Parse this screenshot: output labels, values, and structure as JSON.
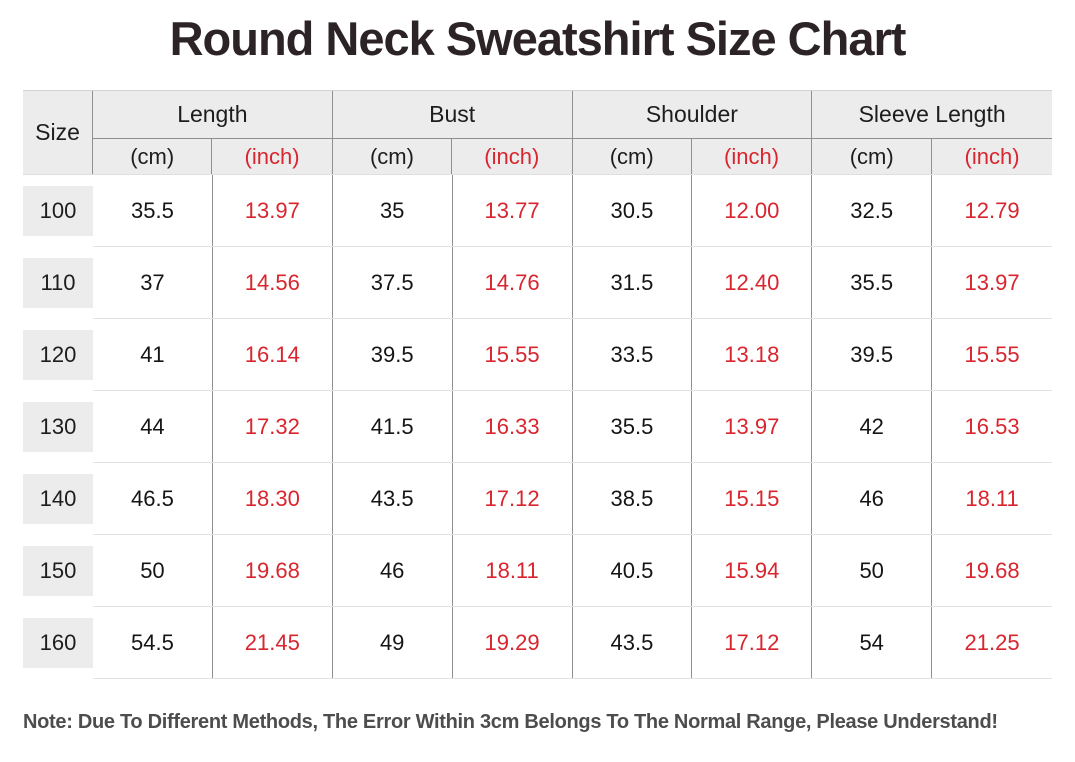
{
  "title": "Round Neck Sweatshirt Size Chart",
  "note": "Note: Due To Different Methods, The Error Within 3cm Belongs To The Normal Range, Please Understand!",
  "colors": {
    "accent_red": "#d9252e",
    "header_bg": "#ececec",
    "grid_line": "#8f8f8f",
    "row_separator": "#e3e3e3",
    "text_dark": "#1d1d1d",
    "note_gray": "#4d4d4d"
  },
  "table": {
    "size_header": "Size",
    "unit_cm": "(cm)",
    "unit_inch": "(inch)",
    "groups": [
      {
        "label": "Length"
      },
      {
        "label": "Bust"
      },
      {
        "label": "Shoulder"
      },
      {
        "label": "Sleeve Length"
      }
    ],
    "rows": [
      {
        "size": "100",
        "length_cm": "35.5",
        "length_inch": "13.97",
        "bust_cm": "35",
        "bust_inch": "13.77",
        "shoulder_cm": "30.5",
        "shoulder_inch": "12.00",
        "sleeve_cm": "32.5",
        "sleeve_inch": "12.79"
      },
      {
        "size": "110",
        "length_cm": "37",
        "length_inch": "14.56",
        "bust_cm": "37.5",
        "bust_inch": "14.76",
        "shoulder_cm": "31.5",
        "shoulder_inch": "12.40",
        "sleeve_cm": "35.5",
        "sleeve_inch": "13.97"
      },
      {
        "size": "120",
        "length_cm": "41",
        "length_inch": "16.14",
        "bust_cm": "39.5",
        "bust_inch": "15.55",
        "shoulder_cm": "33.5",
        "shoulder_inch": "13.18",
        "sleeve_cm": "39.5",
        "sleeve_inch": "15.55"
      },
      {
        "size": "130",
        "length_cm": "44",
        "length_inch": "17.32",
        "bust_cm": "41.5",
        "bust_inch": "16.33",
        "shoulder_cm": "35.5",
        "shoulder_inch": "13.97",
        "sleeve_cm": "42",
        "sleeve_inch": "16.53"
      },
      {
        "size": "140",
        "length_cm": "46.5",
        "length_inch": "18.30",
        "bust_cm": "43.5",
        "bust_inch": "17.12",
        "shoulder_cm": "38.5",
        "shoulder_inch": "15.15",
        "sleeve_cm": "46",
        "sleeve_inch": "18.11"
      },
      {
        "size": "150",
        "length_cm": "50",
        "length_inch": "19.68",
        "bust_cm": "46",
        "bust_inch": "18.11",
        "shoulder_cm": "40.5",
        "shoulder_inch": "15.94",
        "sleeve_cm": "50",
        "sleeve_inch": "19.68"
      },
      {
        "size": "160",
        "length_cm": "54.5",
        "length_inch": "21.45",
        "bust_cm": "49",
        "bust_inch": "19.29",
        "shoulder_cm": "43.5",
        "shoulder_inch": "17.12",
        "sleeve_cm": "54",
        "sleeve_inch": "21.25"
      }
    ]
  },
  "chart_data": {
    "type": "table",
    "title": "Round Neck Sweatshirt Size Chart",
    "column_groups": [
      "Length",
      "Bust",
      "Shoulder",
      "Sleeve Length"
    ],
    "columns": [
      "Size",
      "Length (cm)",
      "Length (inch)",
      "Bust (cm)",
      "Bust (inch)",
      "Shoulder (cm)",
      "Shoulder (inch)",
      "Sleeve Length (cm)",
      "Sleeve Length (inch)"
    ],
    "rows": [
      [
        "100",
        "35.5",
        "13.97",
        "35",
        "13.77",
        "30.5",
        "12.00",
        "32.5",
        "12.79"
      ],
      [
        "110",
        "37",
        "14.56",
        "37.5",
        "14.76",
        "31.5",
        "12.40",
        "35.5",
        "13.97"
      ],
      [
        "120",
        "41",
        "16.14",
        "39.5",
        "15.55",
        "33.5",
        "13.18",
        "39.5",
        "15.55"
      ],
      [
        "130",
        "44",
        "17.32",
        "41.5",
        "16.33",
        "35.5",
        "13.97",
        "42",
        "16.53"
      ],
      [
        "140",
        "46.5",
        "18.30",
        "43.5",
        "17.12",
        "38.5",
        "15.15",
        "46",
        "18.11"
      ],
      [
        "150",
        "50",
        "19.68",
        "46",
        "18.11",
        "40.5",
        "15.94",
        "50",
        "19.68"
      ],
      [
        "160",
        "54.5",
        "21.45",
        "49",
        "19.29",
        "43.5",
        "17.12",
        "54",
        "21.25"
      ]
    ],
    "note": "Note: Due To Different Methods, The Error Within 3cm Belongs To The Normal Range, Please Understand!"
  }
}
